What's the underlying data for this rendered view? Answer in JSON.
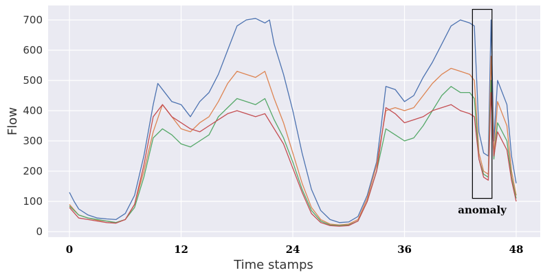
{
  "chart_data": {
    "type": "line",
    "xlabel": "Time stamps",
    "ylabel": "Flow",
    "xlim": [
      0,
      48
    ],
    "ylim": [
      -20,
      740
    ],
    "xticks": [
      0,
      12,
      24,
      36,
      48
    ],
    "yticks": [
      0,
      100,
      200,
      300,
      400,
      500,
      600,
      700
    ],
    "grid": true,
    "legend": "none",
    "annotation": {
      "text": "anomaly",
      "x_range": [
        43.3,
        45.4
      ],
      "y_range": [
        110,
        735
      ]
    },
    "series": [
      {
        "color": "#4c72b0",
        "points": [
          [
            0,
            130
          ],
          [
            0.5,
            100
          ],
          [
            1,
            75
          ],
          [
            2,
            55
          ],
          [
            3,
            45
          ],
          [
            4,
            42
          ],
          [
            5,
            40
          ],
          [
            6,
            60
          ],
          [
            7,
            120
          ],
          [
            8,
            250
          ],
          [
            9,
            420
          ],
          [
            9.5,
            490
          ],
          [
            10,
            470
          ],
          [
            11,
            430
          ],
          [
            12,
            420
          ],
          [
            13,
            380
          ],
          [
            14,
            430
          ],
          [
            15,
            460
          ],
          [
            16,
            520
          ],
          [
            17,
            600
          ],
          [
            18,
            680
          ],
          [
            19,
            700
          ],
          [
            20,
            705
          ],
          [
            21,
            690
          ],
          [
            21.5,
            700
          ],
          [
            22,
            620
          ],
          [
            23,
            520
          ],
          [
            24,
            400
          ],
          [
            25,
            260
          ],
          [
            26,
            140
          ],
          [
            27,
            70
          ],
          [
            28,
            40
          ],
          [
            29,
            30
          ],
          [
            30,
            32
          ],
          [
            31,
            50
          ],
          [
            32,
            120
          ],
          [
            33,
            230
          ],
          [
            33.5,
            350
          ],
          [
            34,
            480
          ],
          [
            35,
            470
          ],
          [
            36,
            430
          ],
          [
            37,
            450
          ],
          [
            38,
            510
          ],
          [
            39,
            560
          ],
          [
            40,
            620
          ],
          [
            41,
            680
          ],
          [
            42,
            700
          ],
          [
            43,
            690
          ],
          [
            43.5,
            680
          ],
          [
            44,
            330
          ],
          [
            44.5,
            260
          ],
          [
            45,
            250
          ],
          [
            45.3,
            700
          ],
          [
            45.6,
            300
          ],
          [
            46,
            500
          ],
          [
            47,
            420
          ],
          [
            47.5,
            250
          ],
          [
            48,
            160
          ]
        ]
      },
      {
        "color": "#dd8452",
        "points": [
          [
            0,
            90
          ],
          [
            1,
            55
          ],
          [
            2,
            45
          ],
          [
            3,
            38
          ],
          [
            4,
            35
          ],
          [
            5,
            30
          ],
          [
            6,
            40
          ],
          [
            7,
            90
          ],
          [
            8,
            200
          ],
          [
            9,
            330
          ],
          [
            10,
            420
          ],
          [
            11,
            380
          ],
          [
            12,
            340
          ],
          [
            13,
            330
          ],
          [
            14,
            360
          ],
          [
            15,
            380
          ],
          [
            16,
            430
          ],
          [
            17,
            490
          ],
          [
            18,
            530
          ],
          [
            19,
            520
          ],
          [
            20,
            510
          ],
          [
            21,
            530
          ],
          [
            22,
            440
          ],
          [
            23,
            360
          ],
          [
            24,
            260
          ],
          [
            25,
            160
          ],
          [
            26,
            80
          ],
          [
            27,
            40
          ],
          [
            28,
            25
          ],
          [
            29,
            22
          ],
          [
            30,
            25
          ],
          [
            31,
            40
          ],
          [
            32,
            110
          ],
          [
            33,
            220
          ],
          [
            34,
            400
          ],
          [
            35,
            410
          ],
          [
            36,
            400
          ],
          [
            37,
            410
          ],
          [
            38,
            450
          ],
          [
            39,
            490
          ],
          [
            40,
            520
          ],
          [
            41,
            540
          ],
          [
            42,
            530
          ],
          [
            43,
            520
          ],
          [
            43.5,
            500
          ],
          [
            44,
            260
          ],
          [
            44.5,
            200
          ],
          [
            45,
            190
          ],
          [
            45.3,
            580
          ],
          [
            45.6,
            250
          ],
          [
            46,
            430
          ],
          [
            47,
            350
          ],
          [
            47.5,
            200
          ],
          [
            48,
            120
          ]
        ]
      },
      {
        "color": "#55a868",
        "points": [
          [
            0,
            85
          ],
          [
            1,
            55
          ],
          [
            2,
            45
          ],
          [
            3,
            40
          ],
          [
            4,
            35
          ],
          [
            5,
            30
          ],
          [
            6,
            40
          ],
          [
            7,
            80
          ],
          [
            8,
            180
          ],
          [
            9,
            310
          ],
          [
            10,
            340
          ],
          [
            11,
            320
          ],
          [
            12,
            290
          ],
          [
            13,
            280
          ],
          [
            14,
            300
          ],
          [
            15,
            320
          ],
          [
            16,
            380
          ],
          [
            17,
            410
          ],
          [
            18,
            440
          ],
          [
            19,
            430
          ],
          [
            20,
            420
          ],
          [
            21,
            440
          ],
          [
            22,
            370
          ],
          [
            23,
            310
          ],
          [
            24,
            230
          ],
          [
            25,
            140
          ],
          [
            26,
            70
          ],
          [
            27,
            35
          ],
          [
            28,
            22
          ],
          [
            29,
            20
          ],
          [
            30,
            22
          ],
          [
            31,
            35
          ],
          [
            32,
            100
          ],
          [
            33,
            200
          ],
          [
            34,
            340
          ],
          [
            35,
            320
          ],
          [
            36,
            300
          ],
          [
            37,
            310
          ],
          [
            38,
            350
          ],
          [
            39,
            400
          ],
          [
            40,
            450
          ],
          [
            41,
            480
          ],
          [
            42,
            460
          ],
          [
            43,
            460
          ],
          [
            43.5,
            440
          ],
          [
            44,
            240
          ],
          [
            44.5,
            190
          ],
          [
            45,
            180
          ],
          [
            45.3,
            500
          ],
          [
            45.6,
            240
          ],
          [
            46,
            360
          ],
          [
            47,
            300
          ],
          [
            47.5,
            180
          ],
          [
            48,
            110
          ]
        ]
      },
      {
        "color": "#c44e52",
        "points": [
          [
            0,
            80
          ],
          [
            1,
            45
          ],
          [
            2,
            40
          ],
          [
            3,
            35
          ],
          [
            4,
            30
          ],
          [
            5,
            28
          ],
          [
            6,
            40
          ],
          [
            7,
            90
          ],
          [
            8,
            220
          ],
          [
            9,
            380
          ],
          [
            10,
            420
          ],
          [
            11,
            380
          ],
          [
            12,
            360
          ],
          [
            13,
            340
          ],
          [
            14,
            330
          ],
          [
            15,
            350
          ],
          [
            16,
            370
          ],
          [
            17,
            390
          ],
          [
            18,
            400
          ],
          [
            19,
            390
          ],
          [
            20,
            380
          ],
          [
            21,
            390
          ],
          [
            22,
            340
          ],
          [
            23,
            290
          ],
          [
            24,
            210
          ],
          [
            25,
            130
          ],
          [
            26,
            60
          ],
          [
            27,
            30
          ],
          [
            28,
            20
          ],
          [
            29,
            18
          ],
          [
            30,
            20
          ],
          [
            31,
            35
          ],
          [
            32,
            100
          ],
          [
            33,
            200
          ],
          [
            34,
            410
          ],
          [
            35,
            390
          ],
          [
            36,
            360
          ],
          [
            37,
            370
          ],
          [
            38,
            380
          ],
          [
            39,
            400
          ],
          [
            40,
            410
          ],
          [
            41,
            420
          ],
          [
            42,
            400
          ],
          [
            43,
            390
          ],
          [
            43.5,
            380
          ],
          [
            44,
            240
          ],
          [
            44.5,
            180
          ],
          [
            45,
            170
          ],
          [
            45.3,
            460
          ],
          [
            45.6,
            250
          ],
          [
            46,
            330
          ],
          [
            47,
            270
          ],
          [
            47.5,
            170
          ],
          [
            48,
            100
          ]
        ]
      }
    ]
  }
}
